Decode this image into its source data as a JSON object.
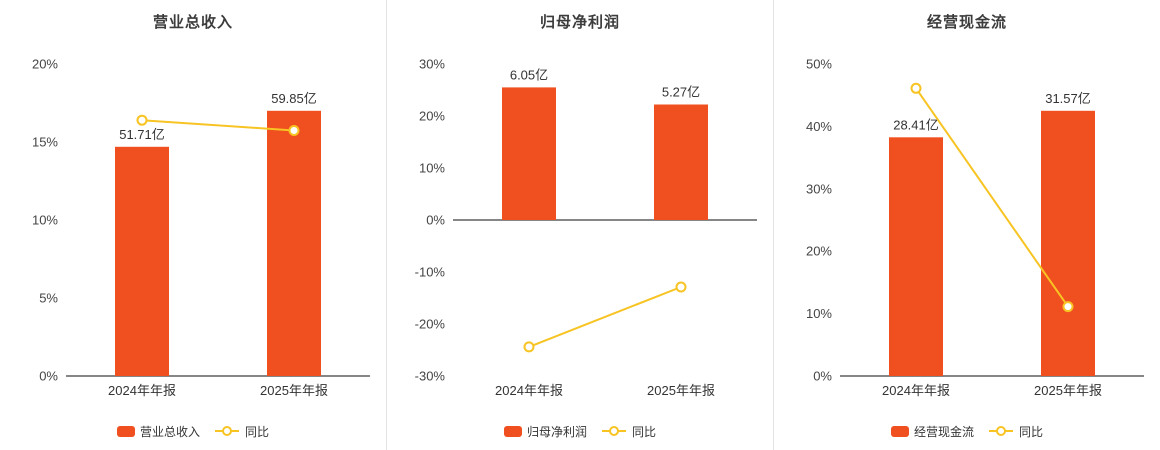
{
  "colors": {
    "bar": "#f0501f",
    "line": "#f7c423",
    "axis": "#5f5f5f",
    "divider": "#e3e3e3",
    "text": "#333333",
    "title": "#3c3c3c"
  },
  "chart_data": [
    {
      "type": "bar",
      "title": "营业总收入",
      "categories": [
        "2024年年报",
        "2025年年报"
      ],
      "bar_series": {
        "name": "营业总收入",
        "value_labels": [
          "51.71亿",
          "59.85亿"
        ],
        "plotted_heights_pct": [
          14.69,
          17.0
        ]
      },
      "line_series": {
        "name": "同比",
        "values_pct": [
          16.4,
          15.74
        ]
      },
      "ylim": [
        0,
        20
      ],
      "yticks": [
        0,
        5,
        10,
        15,
        20
      ],
      "legend_position": "bottom",
      "grid": false
    },
    {
      "type": "bar",
      "title": "归母净利润",
      "categories": [
        "2024年年报",
        "2025年年报"
      ],
      "bar_series": {
        "name": "归母净利润",
        "value_labels": [
          "6.05亿",
          "5.27亿"
        ],
        "plotted_heights_pct": [
          25.5,
          22.21
        ]
      },
      "line_series": {
        "name": "同比",
        "values_pct": [
          -24.4,
          -12.89
        ]
      },
      "ylim": [
        -30,
        30
      ],
      "yticks": [
        -30,
        -20,
        -10,
        0,
        10,
        20,
        30
      ],
      "legend_position": "bottom",
      "grid": false
    },
    {
      "type": "bar",
      "title": "经营现金流",
      "categories": [
        "2024年年报",
        "2025年年报"
      ],
      "bar_series": {
        "name": "经营现金流",
        "value_labels": [
          "28.41亿",
          "31.57亿"
        ],
        "plotted_heights_pct": [
          38.25,
          42.5
        ]
      },
      "line_series": {
        "name": "同比",
        "values_pct": [
          46.1,
          11.12
        ]
      },
      "ylim": [
        0,
        50
      ],
      "yticks": [
        0,
        10,
        20,
        30,
        40,
        50
      ],
      "legend_position": "bottom",
      "grid": false
    }
  ]
}
